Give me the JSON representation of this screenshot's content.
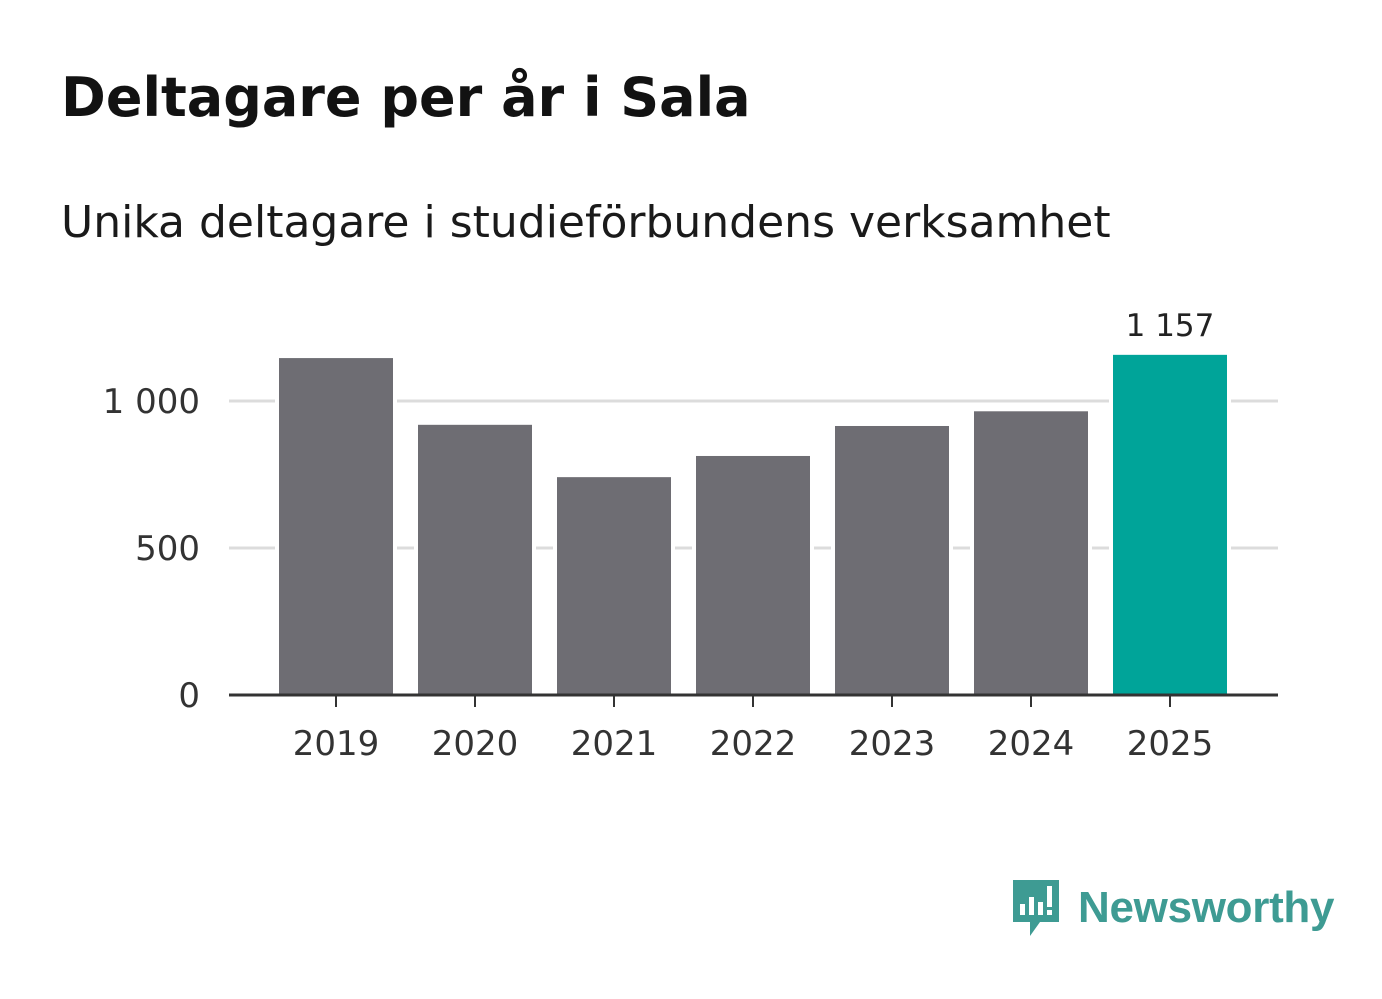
{
  "header": {
    "title": "Deltagare per år i Sala",
    "subtitle": "Unika deltagare i studieförbundens verksamhet"
  },
  "chart_data": {
    "type": "bar",
    "title": "Deltagare per år i Sala",
    "subtitle": "Unika deltagare i studieförbundens verksamhet",
    "categories": [
      "2019",
      "2020",
      "2021",
      "2022",
      "2023",
      "2024",
      "2025"
    ],
    "values": [
      1146,
      919,
      741,
      813,
      915,
      965,
      1157
    ],
    "ylim": [
      0,
      1200
    ],
    "yticks": [
      0,
      500,
      1000
    ],
    "ytick_labels": [
      "0",
      "500",
      "1 000"
    ],
    "xlabel": "",
    "ylabel": "",
    "grid": true,
    "highlight_index": 6,
    "highlight_label": "1 157",
    "colors": {
      "bar": "#6e6d73",
      "highlight": "#00a499",
      "grid": "#dcdcdc",
      "axis": "#333333"
    }
  },
  "brand": {
    "name": "Newsworthy",
    "icon": "newsworthy-logo-icon",
    "color": "#3e9b93"
  }
}
